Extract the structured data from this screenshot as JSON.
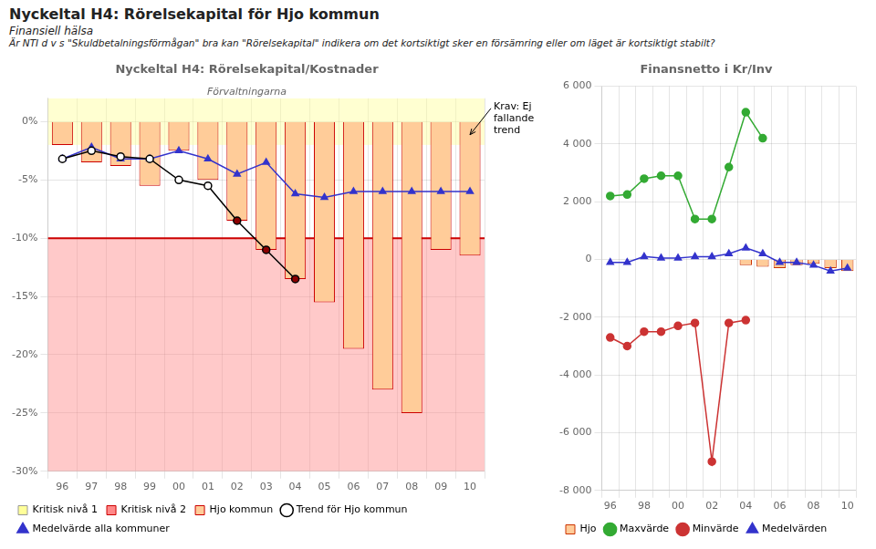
{
  "title": "Nyckeltal H4: Rörelsekapital för Hjo kommun",
  "subtitle": [
    "Finansiell hälsa",
    "Är NTI d v s \"Skuldbetalningsförmågan\" bra kan \"Rörelsekapital\" indikera om det kortsiktigt sker en försämring eller om läget är kortsiktigt stabilt?"
  ],
  "chart_data": [
    {
      "type": "bar",
      "title": "Nyckeltal H4: Rörelsekapital/Kostnader",
      "subtitle": "Förvaltningarna",
      "categories": [
        "96",
        "97",
        "98",
        "99",
        "00",
        "01",
        "02",
        "03",
        "04",
        "05",
        "06",
        "07",
        "08",
        "09",
        "10"
      ],
      "series": [
        {
          "name": "Hjo kommun",
          "type": "bar",
          "color": "#FFCC99",
          "edge_color": "#CC0000",
          "values": [
            -2.0,
            -3.5,
            -3.8,
            -5.5,
            -2.5,
            -5.0,
            -8.5,
            -11.0,
            -13.5,
            -15.5,
            -19.5,
            -23.0,
            -25.0,
            -11.0,
            -11.5
          ]
        },
        {
          "name": "Trend för Hjo kommun",
          "type": "line",
          "color": "#000000",
          "marker": "circle",
          "colors": [
            "#FFFFFF",
            "#FFFFFF",
            "#FFFFFF",
            "#FFFFFF",
            "#FFFFFF",
            "#FFFFFF",
            "#8B0000",
            "#8B0000",
            "#8B0000"
          ],
          "values": [
            -3.2,
            -2.5,
            -3.0,
            -3.2,
            -5.0,
            -5.5,
            -8.5,
            -11.0,
            -13.5,
            null,
            null,
            null,
            null,
            null,
            null
          ]
        },
        {
          "name": "Medelvärde alla kommuner",
          "type": "line",
          "color": "#3333CC",
          "marker": "triangle",
          "values": [
            -3.2,
            -2.2,
            -3.2,
            -3.2,
            -2.5,
            -3.2,
            -4.5,
            -3.5,
            -6.2,
            -6.5,
            -6.0,
            -6.0,
            -6.0,
            -6.0,
            -6.0
          ]
        }
      ],
      "bands": [
        {
          "name": "Kritisk nivå 1",
          "color": "#FFFF99",
          "from": -2,
          "to": 2
        },
        {
          "name": "Kritisk nivå 2",
          "color": "#FF8888",
          "edge_color": "#CC0000",
          "from": -30,
          "to": -10
        }
      ],
      "annotations": [
        {
          "text": "Krav: Ej\nfallande\ntrend"
        }
      ],
      "ylim": [
        -30,
        2
      ],
      "yticks": [
        {
          "value": 0,
          "label": "0%"
        },
        {
          "value": -5,
          "label": "-5%"
        },
        {
          "value": -10,
          "label": "-10%"
        },
        {
          "value": -15,
          "label": "-15%"
        },
        {
          "value": -20,
          "label": "-20%"
        },
        {
          "value": -25,
          "label": "-25%"
        },
        {
          "value": -30,
          "label": "-30%"
        }
      ],
      "grid": true,
      "legend": "bottom"
    },
    {
      "type": "bar",
      "title": "Finansnetto i Kr/Inv",
      "categories": [
        "96",
        null,
        "98",
        null,
        "00",
        null,
        "02",
        null,
        "04",
        null,
        "06",
        null,
        "08",
        null,
        "10"
      ],
      "series": [
        {
          "name": "Hjo",
          "type": "bar",
          "color": "#FFCC99",
          "edge_color": "#CC3300",
          "values": [
            null,
            null,
            null,
            null,
            null,
            null,
            null,
            null,
            -200,
            -250,
            -300,
            -200,
            -150,
            -300,
            -400
          ]
        },
        {
          "name": "Maxvärde",
          "type": "line",
          "color": "#33AA33",
          "marker": "circle",
          "values": [
            2200,
            2250,
            2800,
            2900,
            2900,
            1400,
            1400,
            3200,
            5100,
            4200,
            null,
            null,
            null,
            null,
            null
          ]
        },
        {
          "name": "Minvärde",
          "type": "line",
          "color": "#CC3333",
          "marker": "circle",
          "values": [
            -2700,
            -3000,
            -2500,
            -2500,
            -2300,
            -2200,
            -7000,
            -2200,
            -2100,
            null,
            null,
            null,
            null,
            null,
            null
          ]
        },
        {
          "name": "Medelvärden",
          "type": "line",
          "color": "#3333CC",
          "marker": "triangle",
          "values": [
            -100,
            -100,
            100,
            50,
            50,
            100,
            100,
            200,
            400,
            200,
            -100,
            -100,
            -200,
            -400,
            -300
          ]
        }
      ],
      "ylim": [
        -8000,
        6000
      ],
      "yticks": [
        {
          "value": -8000,
          "label": "-8 000"
        },
        {
          "value": -6000,
          "label": "-6 000"
        },
        {
          "value": -4000,
          "label": "-4 000"
        },
        {
          "value": -2000,
          "label": "-2 000"
        },
        0,
        {
          "value": 2000,
          "label": "2 000"
        },
        {
          "value": 4000,
          "label": "4 000"
        },
        {
          "value": 6000,
          "label": "6 000"
        }
      ],
      "grid": true,
      "legend": "bottom"
    }
  ]
}
